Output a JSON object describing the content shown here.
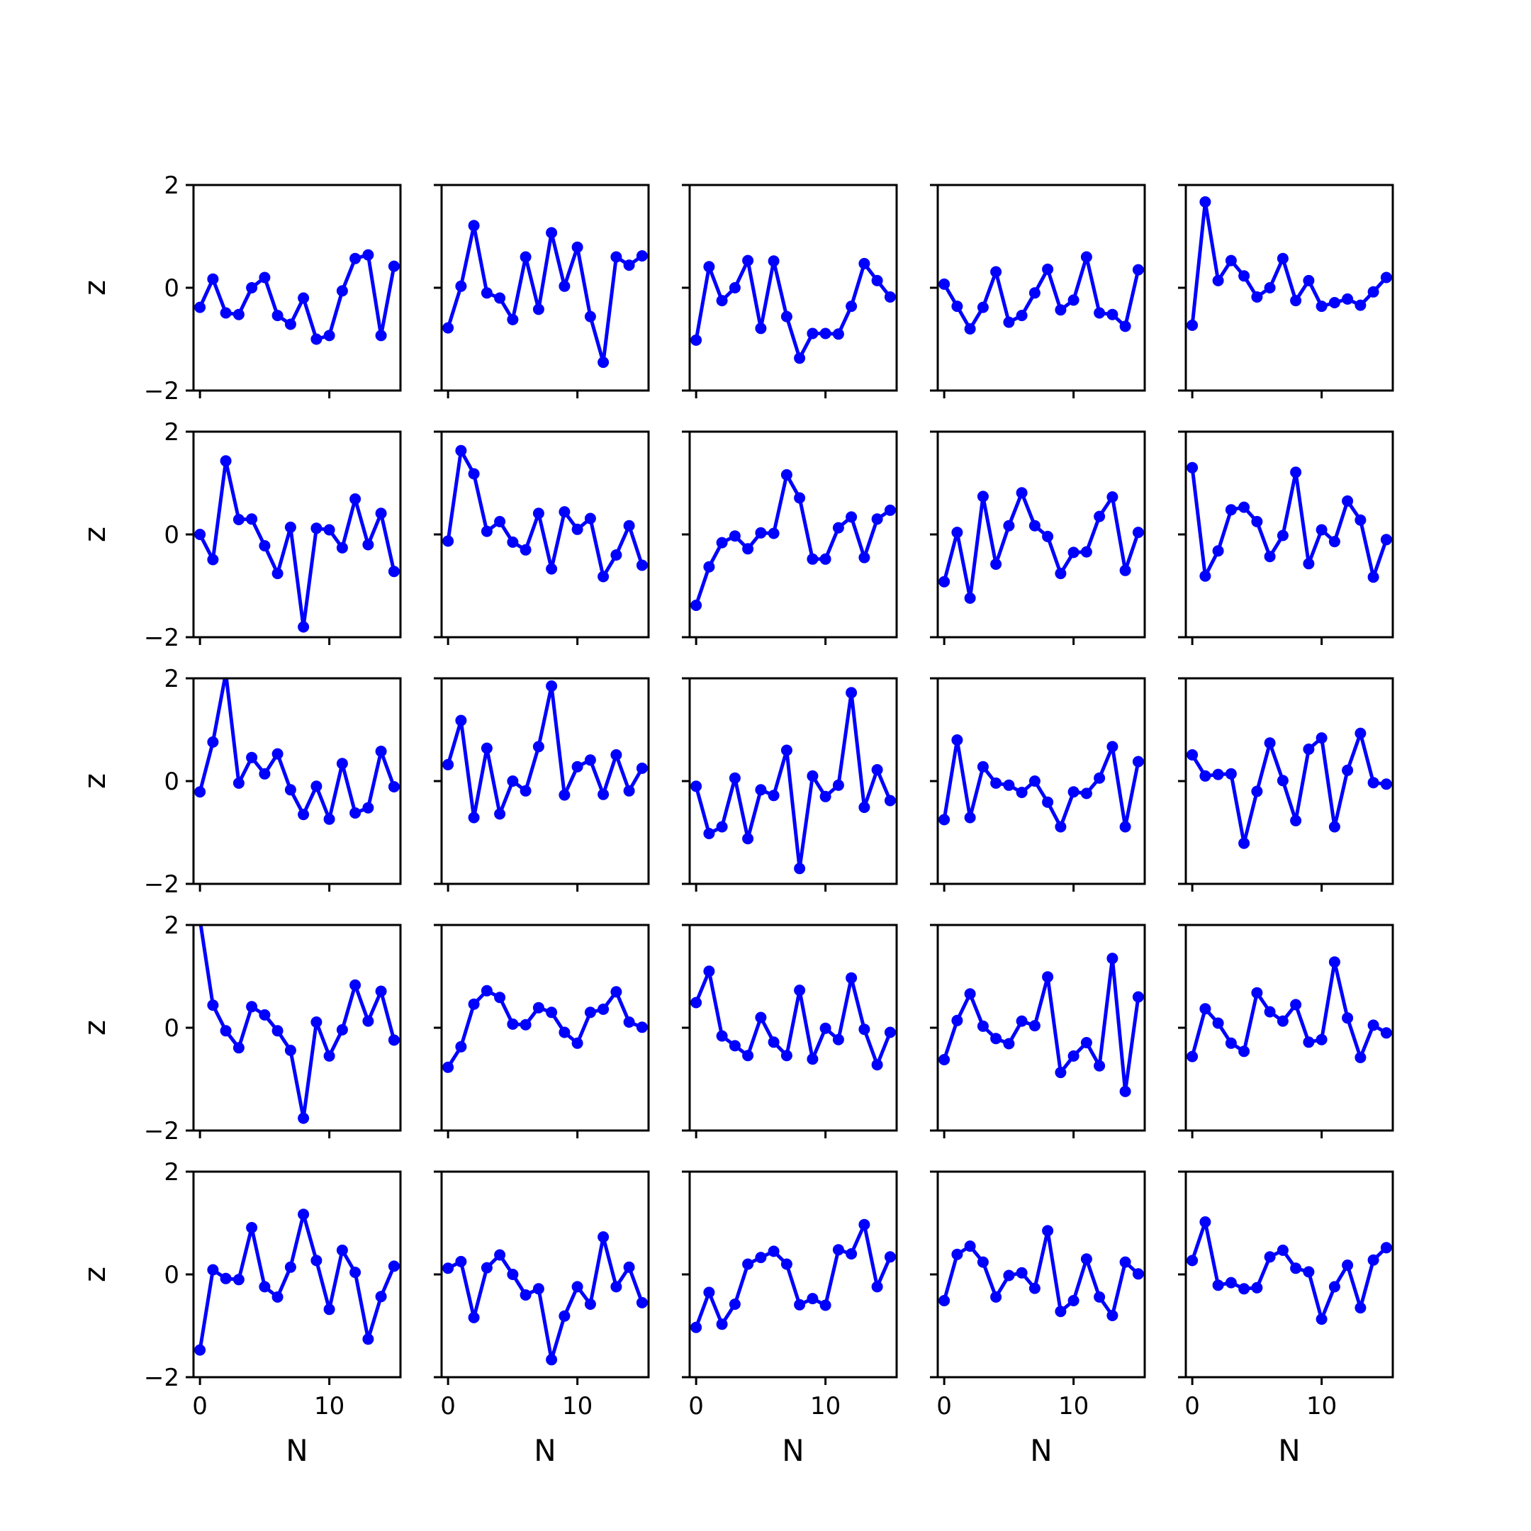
{
  "figure": {
    "xlabel": "N",
    "ylabel": "z"
  },
  "style": {
    "series_color": "#0000ff",
    "axis_color": "#000000",
    "background": "#ffffff"
  },
  "chart_data": {
    "type": "line",
    "layout": {
      "rows": 5,
      "cols": 5,
      "sharex": true,
      "sharey": true
    },
    "x": [
      0,
      1,
      2,
      3,
      4,
      5,
      6,
      7,
      8,
      9,
      10,
      11,
      12,
      13,
      14,
      15
    ],
    "xlim": [
      -0.5,
      15.5
    ],
    "ylim": [
      -2,
      2
    ],
    "xticks": [
      0,
      10
    ],
    "xtick_labels": [
      "0",
      "10"
    ],
    "yticks": [
      -2,
      0,
      2
    ],
    "ytick_labels": [
      "−2",
      "0",
      "2"
    ],
    "xlabel": "N",
    "ylabel": "z",
    "markers": true,
    "panels": [
      {
        "row": 0,
        "col": 0,
        "values": [
          -0.38,
          0.17,
          -0.49,
          -0.52,
          0.0,
          0.2,
          -0.54,
          -0.71,
          -0.2,
          -1.0,
          -0.93,
          -0.06,
          0.57,
          0.64,
          -0.93,
          0.42
        ]
      },
      {
        "row": 0,
        "col": 1,
        "values": [
          -0.78,
          0.03,
          1.21,
          -0.1,
          -0.2,
          -0.62,
          0.6,
          -0.42,
          1.07,
          0.03,
          0.79,
          -0.56,
          -1.45,
          0.6,
          0.44,
          0.62
        ]
      },
      {
        "row": 0,
        "col": 2,
        "values": [
          -1.02,
          0.41,
          -0.25,
          0.0,
          0.53,
          -0.79,
          0.52,
          -0.56,
          -1.37,
          -0.89,
          -0.89,
          -0.9,
          -0.36,
          0.47,
          0.14,
          -0.18
        ]
      },
      {
        "row": 0,
        "col": 3,
        "values": [
          0.07,
          -0.36,
          -0.8,
          -0.38,
          0.31,
          -0.67,
          -0.54,
          -0.1,
          0.36,
          -0.43,
          -0.24,
          0.6,
          -0.49,
          -0.52,
          -0.75,
          0.35
        ]
      },
      {
        "row": 0,
        "col": 4,
        "values": [
          -0.73,
          1.67,
          0.14,
          0.53,
          0.23,
          -0.18,
          0.0,
          0.57,
          -0.25,
          0.14,
          -0.36,
          -0.29,
          -0.22,
          -0.34,
          -0.08,
          0.2
        ]
      },
      {
        "row": 1,
        "col": 0,
        "values": [
          0.0,
          -0.49,
          1.43,
          0.29,
          0.3,
          -0.22,
          -0.76,
          0.14,
          -1.8,
          0.12,
          0.09,
          -0.26,
          0.69,
          -0.2,
          0.41,
          -0.72
        ]
      },
      {
        "row": 1,
        "col": 1,
        "values": [
          -0.13,
          1.63,
          1.18,
          0.06,
          0.25,
          -0.15,
          -0.3,
          0.41,
          -0.67,
          0.44,
          0.1,
          0.31,
          -0.82,
          -0.4,
          0.17,
          -0.6
        ]
      },
      {
        "row": 1,
        "col": 2,
        "values": [
          -1.38,
          -0.63,
          -0.16,
          -0.03,
          -0.28,
          0.03,
          0.02,
          1.16,
          0.71,
          -0.48,
          -0.48,
          0.13,
          0.34,
          -0.45,
          0.3,
          0.47
        ]
      },
      {
        "row": 1,
        "col": 3,
        "values": [
          -0.92,
          0.04,
          -1.24,
          0.74,
          -0.58,
          0.17,
          0.81,
          0.17,
          -0.04,
          -0.76,
          -0.35,
          -0.34,
          0.35,
          0.73,
          -0.7,
          0.04
        ]
      },
      {
        "row": 1,
        "col": 4,
        "values": [
          1.3,
          -0.81,
          -0.32,
          0.48,
          0.53,
          0.25,
          -0.43,
          -0.02,
          1.21,
          -0.57,
          0.09,
          -0.14,
          0.65,
          0.28,
          -0.83,
          -0.1
        ]
      },
      {
        "row": 2,
        "col": 0,
        "values": [
          -0.21,
          0.76,
          2.1,
          -0.04,
          0.46,
          0.14,
          0.53,
          -0.17,
          -0.65,
          -0.1,
          -0.74,
          0.34,
          -0.62,
          -0.52,
          0.58,
          -0.11
        ]
      },
      {
        "row": 2,
        "col": 1,
        "values": [
          0.32,
          1.18,
          -0.71,
          0.64,
          -0.64,
          0.0,
          -0.19,
          0.67,
          1.85,
          -0.27,
          0.28,
          0.41,
          -0.26,
          0.51,
          -0.19,
          0.25
        ]
      },
      {
        "row": 2,
        "col": 2,
        "values": [
          -0.1,
          -1.02,
          -0.89,
          0.06,
          -1.12,
          -0.17,
          -0.28,
          0.6,
          -1.7,
          0.1,
          -0.3,
          -0.08,
          1.72,
          -0.51,
          0.22,
          -0.38
        ]
      },
      {
        "row": 2,
        "col": 3,
        "values": [
          -0.75,
          0.8,
          -0.71,
          0.28,
          -0.04,
          -0.08,
          -0.22,
          0.0,
          -0.41,
          -0.89,
          -0.21,
          -0.24,
          0.06,
          0.67,
          -0.89,
          0.38
        ]
      },
      {
        "row": 2,
        "col": 4,
        "values": [
          0.51,
          0.1,
          0.13,
          0.14,
          -1.21,
          -0.2,
          0.74,
          0.01,
          -0.77,
          0.62,
          0.84,
          -0.89,
          0.21,
          0.93,
          -0.03,
          -0.06
        ]
      },
      {
        "row": 3,
        "col": 0,
        "values": [
          2.1,
          0.44,
          -0.06,
          -0.39,
          0.41,
          0.25,
          -0.06,
          -0.44,
          -1.76,
          0.11,
          -0.55,
          -0.04,
          0.83,
          0.13,
          0.71,
          -0.24
        ]
      },
      {
        "row": 3,
        "col": 1,
        "values": [
          -0.77,
          -0.37,
          0.46,
          0.72,
          0.59,
          0.07,
          0.06,
          0.39,
          0.3,
          -0.09,
          -0.3,
          0.3,
          0.36,
          0.7,
          0.11,
          0.01
        ]
      },
      {
        "row": 3,
        "col": 2,
        "values": [
          0.49,
          1.1,
          -0.16,
          -0.35,
          -0.54,
          0.2,
          -0.28,
          -0.54,
          0.73,
          -0.61,
          -0.01,
          -0.23,
          0.97,
          -0.03,
          -0.72,
          -0.09
        ]
      },
      {
        "row": 3,
        "col": 3,
        "values": [
          -0.62,
          0.14,
          0.66,
          0.03,
          -0.21,
          -0.31,
          0.13,
          0.04,
          0.99,
          -0.87,
          -0.55,
          -0.29,
          -0.74,
          1.35,
          -1.24,
          0.6
        ]
      },
      {
        "row": 3,
        "col": 4,
        "values": [
          -0.56,
          0.37,
          0.09,
          -0.3,
          -0.46,
          0.68,
          0.31,
          0.13,
          0.45,
          -0.28,
          -0.23,
          1.28,
          0.19,
          -0.58,
          0.05,
          -0.1
        ]
      },
      {
        "row": 4,
        "col": 0,
        "values": [
          -1.47,
          0.09,
          -0.08,
          -0.1,
          0.91,
          -0.24,
          -0.44,
          0.14,
          1.17,
          0.27,
          -0.68,
          0.47,
          0.04,
          -1.26,
          -0.43,
          0.16
        ]
      },
      {
        "row": 4,
        "col": 1,
        "values": [
          0.12,
          0.25,
          -0.84,
          0.13,
          0.38,
          0.0,
          -0.4,
          -0.28,
          -1.66,
          -0.81,
          -0.24,
          -0.58,
          0.73,
          -0.24,
          0.14,
          -0.55
        ]
      },
      {
        "row": 4,
        "col": 2,
        "values": [
          -1.03,
          -0.35,
          -0.97,
          -0.58,
          0.2,
          0.33,
          0.45,
          0.2,
          -0.59,
          -0.47,
          -0.6,
          0.48,
          0.4,
          0.97,
          -0.24,
          0.34
        ]
      },
      {
        "row": 4,
        "col": 3,
        "values": [
          -0.51,
          0.39,
          0.55,
          0.24,
          -0.44,
          -0.02,
          0.03,
          -0.27,
          0.85,
          -0.72,
          -0.51,
          0.3,
          -0.44,
          -0.8,
          0.24,
          0.01
        ]
      },
      {
        "row": 4,
        "col": 4,
        "values": [
          0.27,
          1.02,
          -0.21,
          -0.16,
          -0.28,
          -0.26,
          0.34,
          0.47,
          0.12,
          0.05,
          -0.87,
          -0.24,
          0.18,
          -0.65,
          0.28,
          0.52
        ]
      }
    ]
  }
}
